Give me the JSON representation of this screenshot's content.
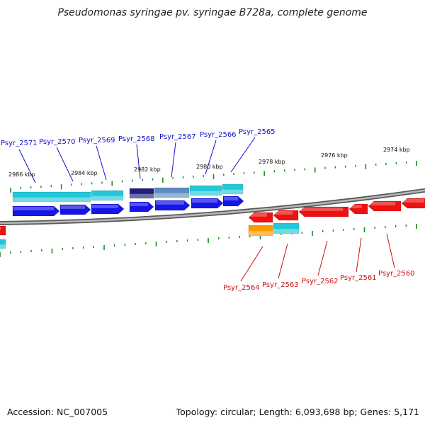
{
  "title": "Pseudomonas syringae pv. syringae B728a, complete genome",
  "footer": {
    "accession": "Accession: NC_007005",
    "topology": "Topology: circular; Length: 6,093,698 bp; Genes: 5,171"
  },
  "scale_labels": [
    "2986 kbp",
    "2984 kbp",
    "2982 kbp",
    "2980 kbp",
    "2978 kbp",
    "2976 kbp",
    "2974 kbp"
  ],
  "top_gene_labels": [
    "Psyr_2571",
    "Psyr_2570",
    "Psyr_2569",
    "Psyr_2568",
    "Psyr_2567",
    "Psyr_2566",
    "Psyr_2565"
  ],
  "bottom_gene_labels": [
    "Psyr_2564",
    "Psyr_2563",
    "Psyr_2562",
    "Psyr_2561",
    "Psyr_2560"
  ],
  "colors": {
    "forward_cds": "#1515e8",
    "reverse_cds": "#ee1111",
    "feature_cyan": "#22c8d8",
    "feature_navy": "#20207a",
    "feature_steel": "#5c8cc0",
    "feature_orange": "#ff9900",
    "backbone": "#808080",
    "tick": "#1a8a1a",
    "top_label": "#1010cc",
    "bottom_label": "#cc1010"
  }
}
